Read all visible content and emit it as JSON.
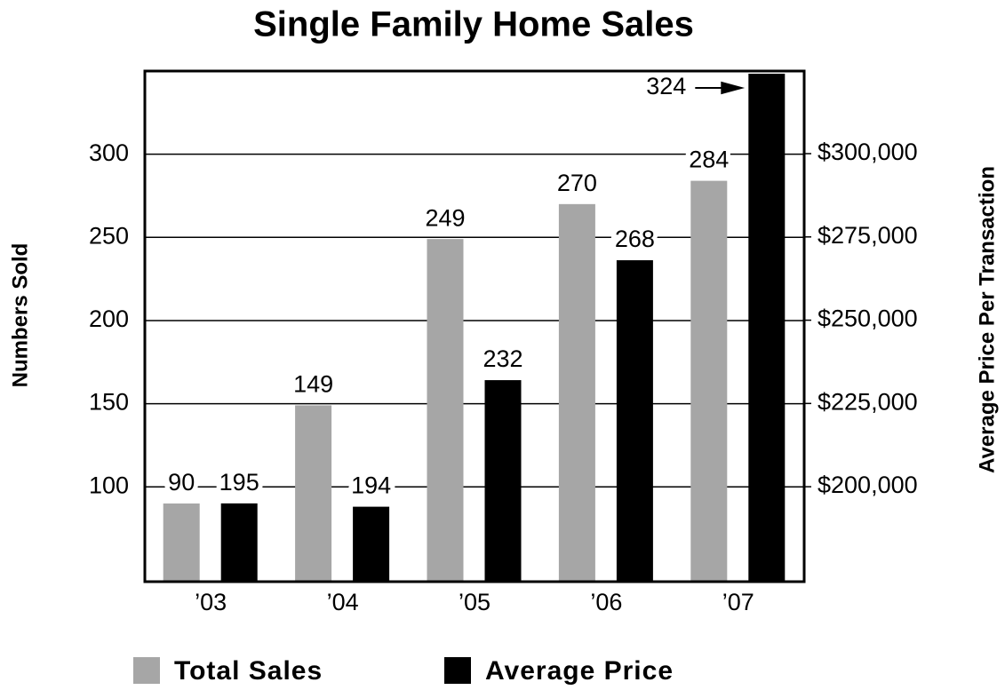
{
  "chart_data": {
    "type": "bar",
    "title": "Single Family Home Sales",
    "categories": [
      "’03",
      "’04",
      "’05",
      "’06",
      "’07"
    ],
    "series": [
      {
        "name": "Total Sales",
        "color": "#a6a6a6",
        "values": [
          90,
          149,
          249,
          270,
          284
        ]
      },
      {
        "name": "Average Price",
        "color": "#000000",
        "axis": "y2",
        "values": [
          195000,
          194000,
          232000,
          268000,
          324000
        ],
        "value_labels": [
          "195",
          "194",
          "232",
          "268",
          "324"
        ]
      }
    ],
    "ylabel": "Numbers Sold",
    "y2label": "Average Price Per Transaction",
    "ylim": [
      43,
      350
    ],
    "yticks": [
      100,
      150,
      200,
      250,
      300
    ],
    "y2lim": [
      171500,
      324800
    ],
    "y2ticks": [
      {
        "value": 200000,
        "label": "$200,000"
      },
      {
        "value": 225000,
        "label": "$225,000"
      },
      {
        "value": 250000,
        "label": "$250,000"
      },
      {
        "value": 275000,
        "label": "$275,000"
      },
      {
        "value": 300000,
        "label": "$300,000"
      }
    ],
    "grid": true,
    "legend": "bottom"
  }
}
